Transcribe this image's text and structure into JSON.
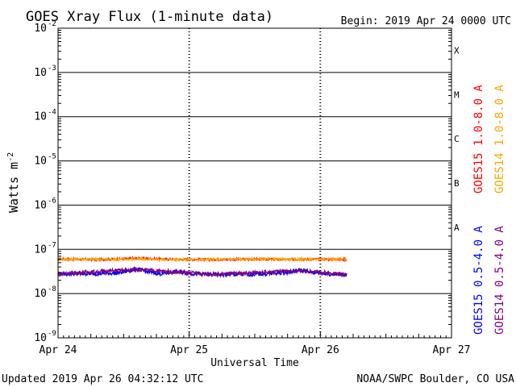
{
  "chart_data": {
    "type": "line",
    "title": "GOES Xray Flux (1-minute data)",
    "begin": "Begin:  2019 Apr 24 0000 UTC",
    "xlabel": "Universal Time",
    "ylabel": "Watts m",
    "ylabel_exp": "-2",
    "x_ticks": [
      "Apr 24",
      "Apr 25",
      "Apr 26",
      "Apr 27"
    ],
    "x_range_days": [
      0,
      3
    ],
    "y_scale": "log",
    "ylim": [
      1e-09,
      0.01
    ],
    "y_tick_mantissa": "10",
    "y_tick_exponents": [
      "-2",
      "-3",
      "-4",
      "-5",
      "-6",
      "-7",
      "-8",
      "-9"
    ],
    "flare_classes": [
      "X",
      "M",
      "C",
      "B",
      "A"
    ],
    "grid": true,
    "legend_placement": "right",
    "series": [
      {
        "name": "GOES15 1.0-8.0 A",
        "color": "#ff0000",
        "points": [
          [
            0,
            6e-08
          ],
          [
            0.3,
            5.9e-08
          ],
          [
            0.5,
            6.1e-08
          ],
          [
            0.6,
            6.3e-08
          ],
          [
            0.8,
            6e-08
          ],
          [
            1.0,
            5.9e-08
          ],
          [
            1.2,
            5.9e-08
          ],
          [
            1.5,
            6e-08
          ],
          [
            1.7,
            5.9e-08
          ],
          [
            2.0,
            6e-08
          ],
          [
            2.2,
            5.9e-08
          ]
        ]
      },
      {
        "name": "GOES14 1.0-8.0 A",
        "color": "#ffa500",
        "points": [
          [
            0,
            6e-08
          ],
          [
            0.5,
            6e-08
          ],
          [
            1.0,
            5.9e-08
          ],
          [
            1.5,
            6e-08
          ],
          [
            2.0,
            6e-08
          ],
          [
            2.2,
            6e-08
          ]
        ]
      },
      {
        "name": "GOES15 0.5-4.0 A",
        "color": "#0000ff",
        "points": [
          [
            0,
            2.8e-08
          ],
          [
            0.2,
            2.8e-08
          ],
          [
            0.45,
            2.9e-08
          ],
          [
            0.53,
            3.2e-08
          ],
          [
            0.6,
            3.6e-08
          ],
          [
            0.68,
            3.1e-08
          ],
          [
            0.78,
            2.8e-08
          ],
          [
            0.9,
            3.1e-08
          ],
          [
            1.05,
            2.8e-08
          ],
          [
            1.2,
            2.7e-08
          ],
          [
            1.4,
            2.7e-08
          ],
          [
            1.6,
            2.8e-08
          ],
          [
            1.75,
            3e-08
          ],
          [
            1.85,
            3.4e-08
          ],
          [
            1.95,
            3e-08
          ],
          [
            2.05,
            2.8e-08
          ],
          [
            2.2,
            2.7e-08
          ]
        ]
      },
      {
        "name": "GOES14 0.5-4.0 A",
        "color": "#800080",
        "points": [
          [
            0,
            2.8e-08
          ],
          [
            0.6,
            3.5e-08
          ],
          [
            1.2,
            2.7e-08
          ],
          [
            1.85,
            3.3e-08
          ],
          [
            2.2,
            2.7e-08
          ]
        ]
      }
    ]
  },
  "footer": {
    "updated": "Updated 2019 Apr 26 04:32:12 UTC",
    "source": "NOAA/SWPC Boulder, CO USA"
  }
}
